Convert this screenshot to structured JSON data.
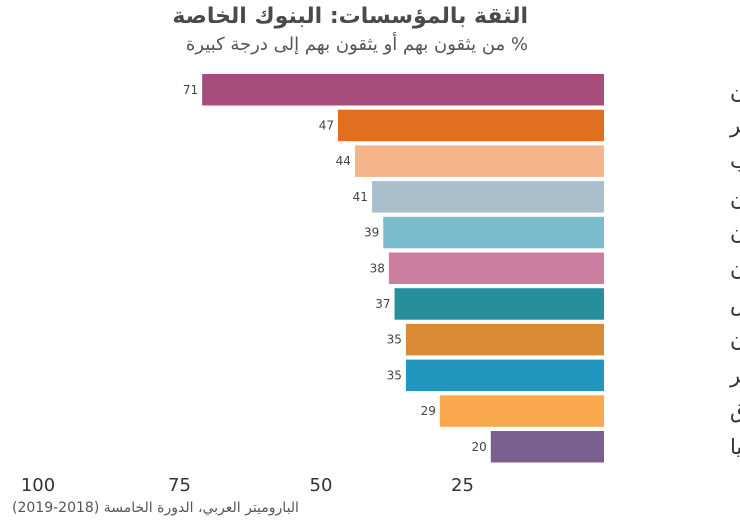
{
  "chart_data": {
    "type": "bar",
    "orientation": "horizontal",
    "title": "الثقة بالمؤسسات: البنوك الخاصة",
    "subtitle": "% من يثقون بهم أو يثقون بهم  إلى درجة كبيرة",
    "source": "الباروميتر العربي، الدورة الخامسة (2018-2019)",
    "categories": [
      "اليمن",
      "مصر",
      "المغرب",
      "فلسطين",
      "لبنان",
      "الأردن",
      "تونس",
      "السودان",
      "الجزائر",
      "العراق",
      "ليبيا"
    ],
    "values": [
      71,
      47,
      44,
      41,
      39,
      38,
      37,
      35,
      35,
      29,
      20
    ],
    "colors": [
      "#a64d7c",
      "#e07020",
      "#f6b48a",
      "#a9bfcc",
      "#7bbccc",
      "#cc7ea0",
      "#268f9c",
      "#d98a35",
      "#2196be",
      "#f9a84e",
      "#7a5f8f"
    ],
    "xlim": [
      0,
      100
    ],
    "x_reversed": true,
    "xticks": [
      "100",
      "75",
      "50",
      "25"
    ],
    "grid": false,
    "legend": "none"
  }
}
